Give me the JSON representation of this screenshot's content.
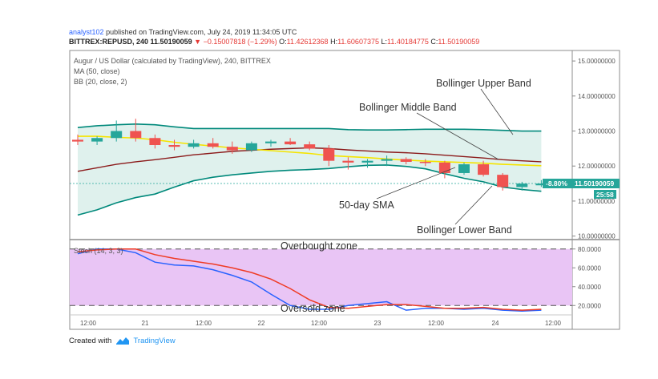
{
  "header": {
    "author": "analyst102",
    "published": "published on TradingView.com, July 24, 2019 11:34:05 UTC",
    "symbol": "BITTREX:REPUSD, 240",
    "last": "11.50190059",
    "change": "−0.15007818 (−1.29%)",
    "o_label": "O:",
    "o_value": "11.42612368",
    "h_label": "H:",
    "h_value": "11.60607375",
    "l_label": "L:",
    "l_value": "11.40184775",
    "c_label": "C:",
    "c_value": "11.50190059"
  },
  "legend": {
    "title": "Augur / US Dollar (calculated by TradingView), 240, BITTREX",
    "ma": "MA (50, close)",
    "bb": "BB (20, close, 2)",
    "stoch": "Stoch (14, 3, 3)"
  },
  "annotations": {
    "upper": "Bollinger Upper Band",
    "middle": "Bollinger Middle Band",
    "sma": "50-day SMA",
    "lower": "Bollinger Lower Band",
    "overbought": "Overbought zone",
    "oversold": "Oversold zone"
  },
  "price_badge": {
    "change": "-8.80%",
    "price": "11.50190059",
    "countdown": "25:58"
  },
  "footer": {
    "created": "Created with",
    "brand": "TradingView"
  },
  "colors": {
    "bull": "#26a69a",
    "bear": "#ef5350",
    "ma": "#f5e400",
    "bb_upper": "#00897b",
    "bb_middle": "#8b1a1a",
    "bb_fill": "#dff1ed",
    "stoch_k": "#2962ff",
    "stoch_d": "#ef3b24",
    "stoch_fill": "#e9c5f5",
    "badge_bg": "#26a69a"
  },
  "chart_data": [
    {
      "type": "candlestick",
      "title": "Augur / US Dollar",
      "y_ticks": [
        "15.00000000",
        "14.00000000",
        "13.00000000",
        "12.00000000",
        "11.00000000",
        "10.00000000"
      ],
      "ylim": [
        9.9,
        15.3
      ],
      "x_ticks": [
        "12:00",
        "21",
        "12:00",
        "22",
        "12:00",
        "23",
        "12:00",
        "24",
        "12:00"
      ],
      "candles": [
        {
          "o": 12.75,
          "h": 12.9,
          "l": 12.6,
          "c": 12.7
        },
        {
          "o": 12.7,
          "h": 12.85,
          "l": 12.6,
          "c": 12.8
        },
        {
          "o": 12.8,
          "h": 13.3,
          "l": 12.7,
          "c": 13.0
        },
        {
          "o": 13.0,
          "h": 13.35,
          "l": 12.7,
          "c": 12.8
        },
        {
          "o": 12.8,
          "h": 12.9,
          "l": 12.5,
          "c": 12.6
        },
        {
          "o": 12.6,
          "h": 12.75,
          "l": 12.45,
          "c": 12.55
        },
        {
          "o": 12.55,
          "h": 12.75,
          "l": 12.5,
          "c": 12.65
        },
        {
          "o": 12.65,
          "h": 12.8,
          "l": 12.5,
          "c": 12.55
        },
        {
          "o": 12.55,
          "h": 12.7,
          "l": 12.35,
          "c": 12.45
        },
        {
          "o": 12.45,
          "h": 12.7,
          "l": 12.4,
          "c": 12.65
        },
        {
          "o": 12.65,
          "h": 12.75,
          "l": 12.55,
          "c": 12.7
        },
        {
          "o": 12.7,
          "h": 12.8,
          "l": 12.6,
          "c": 12.62
        },
        {
          "o": 12.62,
          "h": 12.7,
          "l": 12.45,
          "c": 12.5
        },
        {
          "o": 12.5,
          "h": 12.6,
          "l": 12.0,
          "c": 12.15
        },
        {
          "o": 12.15,
          "h": 12.25,
          "l": 11.9,
          "c": 12.1
        },
        {
          "o": 12.1,
          "h": 12.2,
          "l": 11.95,
          "c": 12.15
        },
        {
          "o": 12.15,
          "h": 12.3,
          "l": 12.0,
          "c": 12.2
        },
        {
          "o": 12.2,
          "h": 12.25,
          "l": 12.05,
          "c": 12.12
        },
        {
          "o": 12.12,
          "h": 12.2,
          "l": 12.0,
          "c": 12.1
        },
        {
          "o": 12.1,
          "h": 12.15,
          "l": 11.65,
          "c": 11.8
        },
        {
          "o": 11.8,
          "h": 12.1,
          "l": 11.75,
          "c": 12.05
        },
        {
          "o": 12.05,
          "h": 12.15,
          "l": 11.7,
          "c": 11.75
        },
        {
          "o": 11.75,
          "h": 11.8,
          "l": 11.3,
          "c": 11.4
        },
        {
          "o": 11.4,
          "h": 11.55,
          "l": 11.3,
          "c": 11.5
        },
        {
          "o": 11.45,
          "h": 11.6,
          "l": 11.4,
          "c": 11.5
        }
      ],
      "bb_upper": [
        13.1,
        13.15,
        13.18,
        13.2,
        13.18,
        13.12,
        13.07,
        13.07,
        13.07,
        13.07,
        13.07,
        13.07,
        13.07,
        13.07,
        13.04,
        13.03,
        13.03,
        13.04,
        13.05,
        13.05,
        13.05,
        13.04,
        13.02,
        13.0,
        13.0
      ],
      "bb_middle": [
        11.85,
        11.95,
        12.05,
        12.12,
        12.18,
        12.25,
        12.32,
        12.37,
        12.42,
        12.45,
        12.48,
        12.5,
        12.52,
        12.5,
        12.46,
        12.43,
        12.4,
        12.38,
        12.35,
        12.31,
        12.27,
        12.23,
        12.18,
        12.15,
        12.12
      ],
      "bb_lower": [
        10.6,
        10.75,
        10.95,
        11.1,
        11.2,
        11.4,
        11.58,
        11.68,
        11.75,
        11.8,
        11.85,
        11.88,
        11.9,
        11.93,
        11.98,
        12.02,
        12.03,
        11.99,
        11.92,
        11.78,
        11.65,
        11.55,
        11.4,
        11.33,
        11.28
      ],
      "ma50": [
        12.85,
        12.85,
        12.82,
        12.8,
        12.75,
        12.68,
        12.62,
        12.57,
        12.52,
        12.48,
        12.44,
        12.4,
        12.36,
        12.3,
        12.27,
        12.24,
        12.2,
        12.17,
        12.14,
        12.12,
        12.1,
        12.08,
        12.05,
        12.03,
        12.01
      ],
      "last_price_line": 11.50190059
    },
    {
      "type": "line",
      "title": "Stoch (14, 3, 3)",
      "y_ticks": [
        "80.0000",
        "60.0000",
        "40.0000",
        "20.0000"
      ],
      "ylim": [
        10,
        90
      ],
      "bands": [
        20,
        80
      ],
      "series": [
        {
          "name": "%K",
          "values": [
            75,
            80,
            80,
            76,
            66,
            63,
            62,
            58,
            52,
            45,
            32,
            20,
            16,
            16,
            20,
            22,
            24,
            15,
            17,
            17,
            16,
            17,
            15,
            14,
            15
          ]
        },
        {
          "name": "%D",
          "values": [
            77,
            79,
            80,
            80,
            74,
            70,
            67,
            64,
            60,
            55,
            48,
            38,
            26,
            18,
            17,
            19,
            21,
            21,
            19,
            17,
            17,
            18,
            16,
            15,
            16
          ]
        }
      ]
    }
  ]
}
